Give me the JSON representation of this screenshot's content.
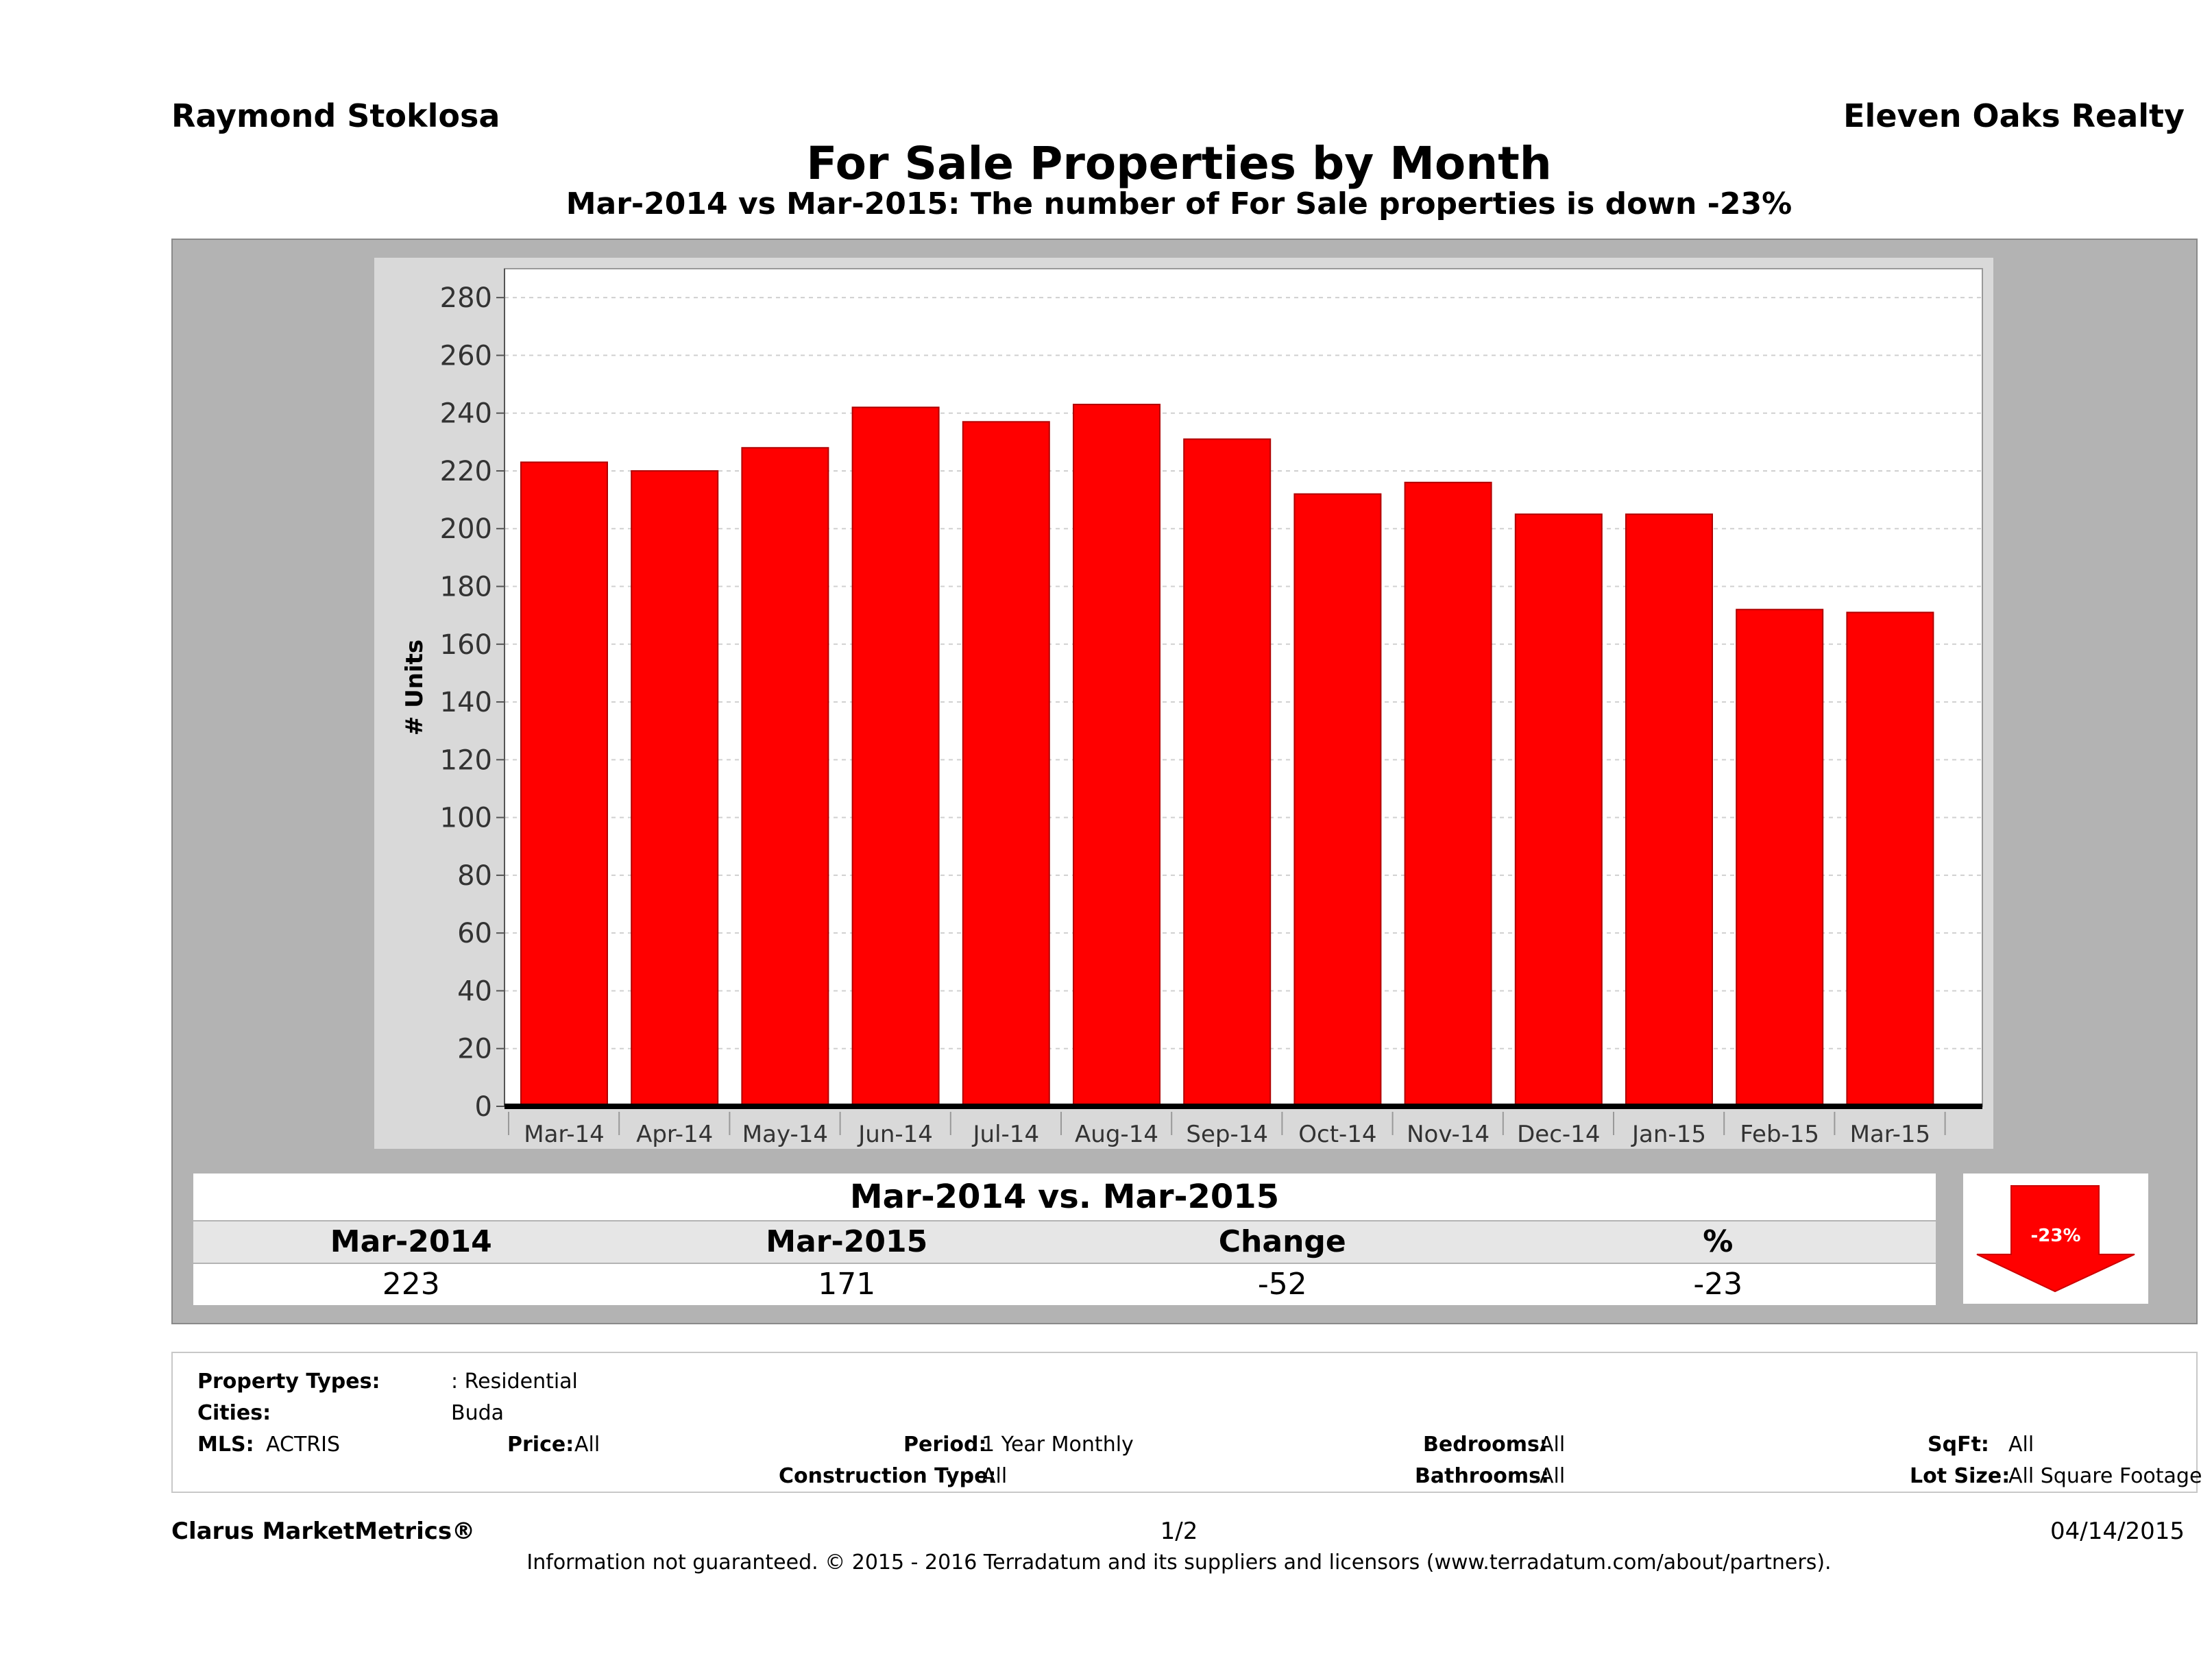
{
  "header": {
    "agent_name": "Raymond Stoklosa",
    "brokerage": "Eleven Oaks Realty",
    "title": "For Sale Properties by Month",
    "subtitle": "Mar-2014 vs Mar-2015: The number of For Sale  properties is down -23%"
  },
  "chart_data": {
    "type": "bar",
    "categories": [
      "Mar-14",
      "Apr-14",
      "May-14",
      "Jun-14",
      "Jul-14",
      "Aug-14",
      "Sep-14",
      "Oct-14",
      "Nov-14",
      "Dec-14",
      "Jan-15",
      "Feb-15",
      "Mar-15"
    ],
    "values": [
      223,
      220,
      228,
      242,
      237,
      243,
      231,
      212,
      216,
      205,
      205,
      172,
      171
    ],
    "ylabel": "# Units",
    "ylim": [
      0,
      290
    ],
    "yticks": [
      0,
      20,
      40,
      60,
      80,
      100,
      120,
      140,
      160,
      180,
      200,
      220,
      240,
      260,
      280
    ],
    "grid": true,
    "bar_color": "#ff0000"
  },
  "summary": {
    "heading": "Mar-2014 vs. Mar-2015",
    "col1_label": "Mar-2014",
    "col2_label": "Mar-2015",
    "col3_label": "Change",
    "col4_label": "%",
    "col1_value": "223",
    "col2_value": "171",
    "col3_value": "-52",
    "col4_value": "-23",
    "arrow_label": "-23%",
    "arrow_color": "#ff0000"
  },
  "criteria": {
    "property_types_label": "Property Types:",
    "property_types_value": ": Residential",
    "cities_label": "Cities:",
    "cities_value": "Buda",
    "mls_label": "MLS:",
    "mls_value": "ACTRIS",
    "price_label": "Price:",
    "price_value": "All",
    "period_label": "Period:",
    "period_value": "1 Year Monthly",
    "construction_label": "Construction Type:",
    "construction_value": "All",
    "bedrooms_label": "Bedrooms:",
    "bedrooms_value": "All",
    "bathrooms_label": "Bathrooms:",
    "bathrooms_value": "All",
    "sqft_label": "SqFt:",
    "sqft_value": "All",
    "lot_label": "Lot Size:",
    "lot_value": "All Square Footage"
  },
  "footer": {
    "brand": "Clarus MarketMetrics®",
    "page": "1/2",
    "date": "04/14/2015",
    "disclaimer": "Information not guaranteed. © 2015 - 2016 Terradatum and its suppliers and licensors (www.terradatum.com/about/partners)."
  }
}
